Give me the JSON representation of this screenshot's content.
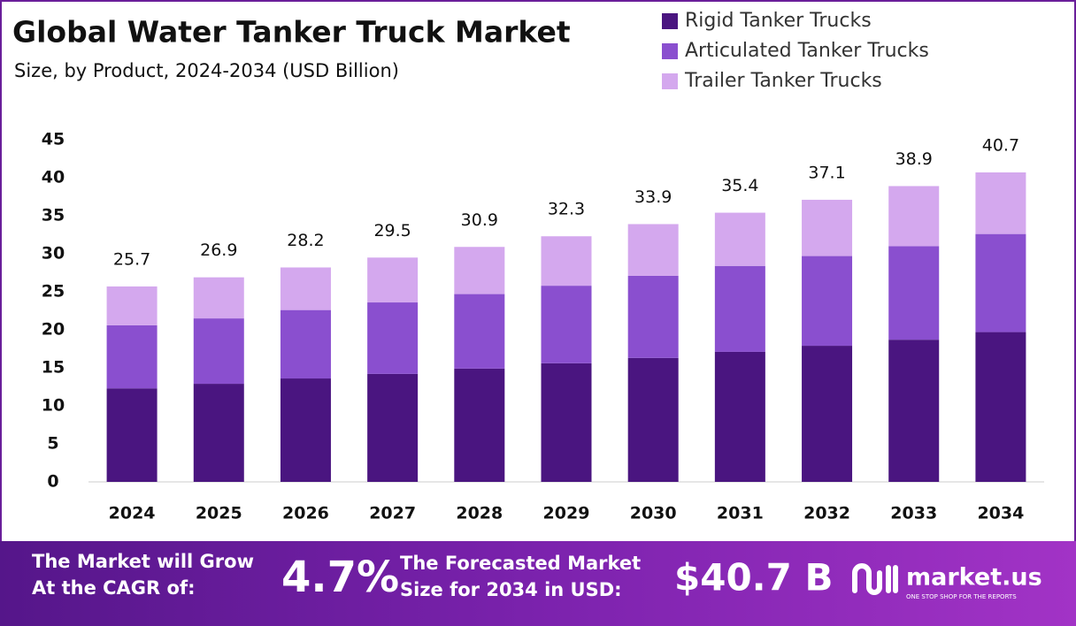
{
  "chart_data": {
    "type": "bar",
    "stacked": true,
    "title": "Global Water Tanker Truck Market",
    "subtitle": "Size, by Product, 2024-2034 (USD Billion)",
    "categories": [
      "2024",
      "2025",
      "2026",
      "2027",
      "2028",
      "2029",
      "2030",
      "2031",
      "2032",
      "2033",
      "2034"
    ],
    "series": [
      {
        "name": "Rigid Tanker Trucks",
        "color": "#4a1580",
        "values": [
          12.3,
          12.9,
          13.6,
          14.2,
          14.9,
          15.6,
          16.3,
          17.1,
          17.9,
          18.7,
          19.7
        ]
      },
      {
        "name": "Articulated Tanker Trucks",
        "color": "#8a4fcf",
        "values": [
          8.3,
          8.6,
          9.0,
          9.4,
          9.8,
          10.2,
          10.8,
          11.3,
          11.8,
          12.3,
          12.9
        ]
      },
      {
        "name": "Trailer Tanker Trucks",
        "color": "#d4a8ee",
        "values": [
          5.1,
          5.4,
          5.6,
          5.9,
          6.2,
          6.5,
          6.8,
          7.0,
          7.4,
          7.9,
          8.1
        ]
      }
    ],
    "totals": [
      25.7,
      26.9,
      28.2,
      29.5,
      30.9,
      32.3,
      33.9,
      35.4,
      37.1,
      38.9,
      40.7
    ],
    "ylim": [
      0,
      45
    ],
    "yticks": [
      0,
      5,
      10,
      15,
      20,
      25,
      30,
      35,
      40,
      45
    ],
    "grid": false,
    "legend": "top-right"
  },
  "footer": {
    "cagr_text": [
      "The Market will Grow",
      "At the CAGR of:"
    ],
    "cagr_value": "4.7%",
    "forecast_text": [
      "The Forecasted Market",
      "Size for 2034 in USD:"
    ],
    "forecast_value": "$40.7 B",
    "brand": "market.us",
    "tagline": "ONE STOP SHOP FOR THE REPORTS"
  }
}
